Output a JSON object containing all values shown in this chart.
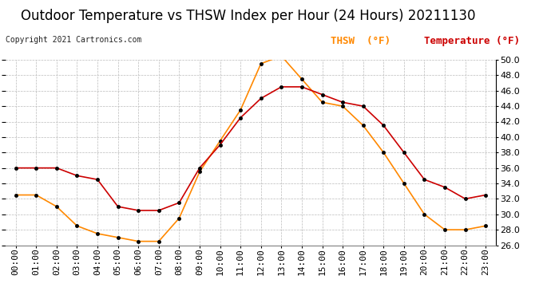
{
  "title": "Outdoor Temperature vs THSW Index per Hour (24 Hours) 20211130",
  "copyright": "Copyright 2021 Cartronics.com",
  "legend_thsw": "THSW  (°F)",
  "legend_temp": "Temperature (°F)",
  "hours": [
    "00:00",
    "01:00",
    "02:00",
    "03:00",
    "04:00",
    "05:00",
    "06:00",
    "07:00",
    "08:00",
    "09:00",
    "10:00",
    "11:00",
    "12:00",
    "13:00",
    "14:00",
    "15:00",
    "16:00",
    "17:00",
    "18:00",
    "19:00",
    "20:00",
    "21:00",
    "22:00",
    "23:00"
  ],
  "temperature": [
    36.0,
    36.0,
    36.0,
    35.0,
    34.5,
    31.0,
    30.5,
    30.5,
    31.5,
    36.0,
    39.0,
    42.5,
    45.0,
    46.5,
    46.5,
    45.5,
    44.5,
    44.0,
    41.5,
    38.0,
    34.5,
    33.5,
    32.0,
    32.5
  ],
  "thsw": [
    32.5,
    32.5,
    31.0,
    28.5,
    27.5,
    27.0,
    26.5,
    26.5,
    29.5,
    35.5,
    39.5,
    43.5,
    49.5,
    50.5,
    47.5,
    44.5,
    44.0,
    41.5,
    38.0,
    34.0,
    30.0,
    28.0,
    28.0,
    28.5
  ],
  "temp_color": "#cc0000",
  "thsw_color": "#ff8800",
  "marker_color": "#000000",
  "ylim_min": 26.0,
  "ylim_max": 50.0,
  "ytick_step": 2.0,
  "background_color": "#ffffff",
  "grid_color": "#bbbbbb",
  "title_fontsize": 12,
  "tick_fontsize": 8,
  "legend_fontsize": 9,
  "copyright_fontsize": 7
}
